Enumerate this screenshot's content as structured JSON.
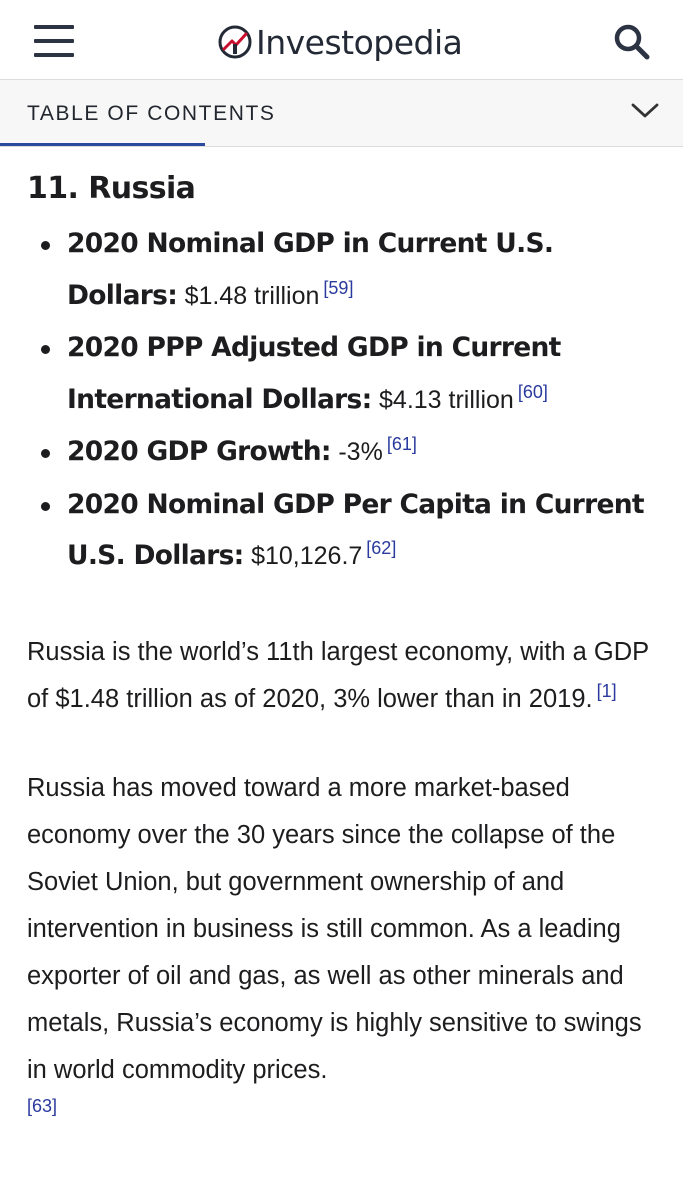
{
  "header": {
    "brand": "Investopedia",
    "menu_icon": "hamburger-menu-icon",
    "search_icon": "search-icon"
  },
  "toc": {
    "label": "TABLE OF CONTENTS",
    "chevron_icon": "chevron-down-icon"
  },
  "article": {
    "section_title": "11. Russia",
    "stats": [
      {
        "label": "2020 Nominal GDP in Current U.S. Dollars:",
        "value": "$1.48 trillion",
        "ref": "[59]"
      },
      {
        "label": "2020 PPP Adjusted GDP in Current International Dollars:",
        "value": "$4.13 trillion",
        "ref": "[60]"
      },
      {
        "label": "2020 GDP Growth:",
        "value": "-3%",
        "ref": "[61]"
      },
      {
        "label": "2020 Nominal GDP Per Capita in Current U.S. Dollars:",
        "value": "$10,126.7",
        "ref": "[62]"
      }
    ],
    "paragraph1": {
      "text": "Russia is the world’s 11th largest economy, with a GDP of $1.48 trillion as of 2020, 3% lower than in 2019.",
      "ref": "[1]"
    },
    "paragraph2": {
      "text": "Russia has moved toward a more market-based economy over the 30 years since the collapse of the Soviet Union, but government ownership of and intervention in business is still common. As a leading exporter of oil and gas, as well as other minerals and metals, Russia’s economy is highly sensitive to swings in world commodity prices.",
      "ref": "[63]"
    }
  },
  "colors": {
    "brand_dark": "#232a36",
    "link_blue": "#2a3a9e",
    "toc_underline": "#2a4a9e",
    "toc_background": "#f7f7f7"
  }
}
